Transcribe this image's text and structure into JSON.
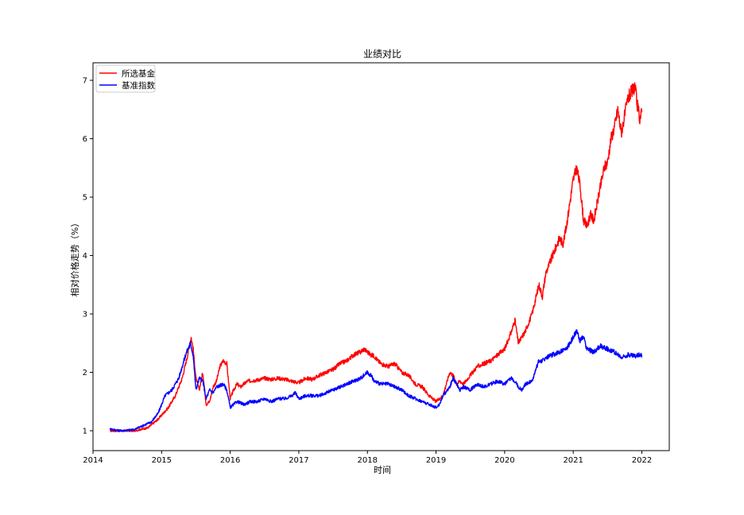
{
  "chart_data": {
    "type": "line",
    "title": "业绩对比",
    "xlabel": "时间",
    "ylabel": "相对价格走势（%）",
    "xlim": [
      2014.0,
      2022.4
    ],
    "ylim": [
      0.66,
      7.3
    ],
    "x_ticks": [
      "2014",
      "2015",
      "2016",
      "2017",
      "2018",
      "2019",
      "2020",
      "2021",
      "2022"
    ],
    "y_ticks": [
      "1",
      "2",
      "3",
      "4",
      "5",
      "6",
      "7"
    ],
    "legend": "top-left",
    "grid": false,
    "series": [
      {
        "name": "所选基金",
        "color": "#ff0000",
        "x": [
          2014.25,
          2014.4,
          2014.6,
          2014.8,
          2014.95,
          2015.1,
          2015.2,
          2015.3,
          2015.38,
          2015.43,
          2015.46,
          2015.5,
          2015.55,
          2015.6,
          2015.65,
          2015.7,
          2015.75,
          2015.8,
          2015.85,
          2015.9,
          2015.95,
          2016.0,
          2016.05,
          2016.1,
          2016.15,
          2016.25,
          2016.4,
          2016.5,
          2016.6,
          2016.7,
          2016.8,
          2016.9,
          2017.0,
          2017.1,
          2017.2,
          2017.3,
          2017.4,
          2017.5,
          2017.6,
          2017.7,
          2017.8,
          2017.9,
          2017.95,
          2018.0,
          2018.05,
          2018.1,
          2018.15,
          2018.2,
          2018.3,
          2018.4,
          2018.5,
          2018.6,
          2018.7,
          2018.8,
          2018.9,
          2019.0,
          2019.05,
          2019.1,
          2019.15,
          2019.2,
          2019.25,
          2019.3,
          2019.35,
          2019.4,
          2019.5,
          2019.6,
          2019.7,
          2019.8,
          2019.9,
          2020.0,
          2020.1,
          2020.15,
          2020.2,
          2020.25,
          2020.3,
          2020.4,
          2020.5,
          2020.55,
          2020.6,
          2020.7,
          2020.8,
          2020.85,
          2020.9,
          2020.95,
          2021.0,
          2021.05,
          2021.1,
          2021.15,
          2021.2,
          2021.25,
          2021.3,
          2021.35,
          2021.4,
          2021.45,
          2021.5,
          2021.55,
          2021.6,
          2021.65,
          2021.7,
          2021.75,
          2021.8,
          2021.85,
          2021.9,
          2021.93,
          2021.97,
          2022.0
        ],
        "y": [
          1.0,
          1.0,
          1.0,
          1.05,
          1.2,
          1.4,
          1.6,
          1.9,
          2.3,
          2.6,
          2.4,
          1.9,
          1.7,
          2.0,
          1.45,
          1.5,
          1.75,
          1.85,
          2.1,
          2.2,
          2.15,
          1.55,
          1.7,
          1.8,
          1.75,
          1.85,
          1.87,
          1.9,
          1.88,
          1.9,
          1.88,
          1.85,
          1.82,
          1.9,
          1.88,
          1.95,
          2.0,
          2.05,
          2.15,
          2.2,
          2.3,
          2.35,
          2.4,
          2.35,
          2.3,
          2.28,
          2.2,
          2.15,
          2.1,
          2.15,
          2.0,
          1.95,
          1.8,
          1.75,
          1.6,
          1.5,
          1.55,
          1.6,
          1.8,
          2.0,
          1.95,
          1.8,
          1.85,
          1.8,
          1.95,
          2.1,
          2.15,
          2.2,
          2.3,
          2.4,
          2.7,
          2.9,
          2.5,
          2.6,
          2.7,
          3.0,
          3.5,
          3.3,
          3.7,
          4.0,
          4.3,
          4.2,
          4.5,
          4.9,
          5.3,
          5.5,
          5.2,
          4.6,
          4.5,
          4.7,
          4.6,
          4.9,
          5.2,
          5.5,
          5.6,
          6.0,
          6.2,
          6.5,
          6.1,
          6.4,
          6.7,
          6.8,
          6.9,
          6.6,
          6.35,
          6.45
        ]
      },
      {
        "name": "基准指数",
        "color": "#0000ff",
        "x": [
          2014.25,
          2014.4,
          2014.6,
          2014.75,
          2014.85,
          2014.95,
          2015.05,
          2015.15,
          2015.25,
          2015.35,
          2015.42,
          2015.46,
          2015.5,
          2015.55,
          2015.6,
          2015.65,
          2015.7,
          2015.75,
          2015.8,
          2015.9,
          2015.95,
          2016.0,
          2016.05,
          2016.1,
          2016.2,
          2016.3,
          2016.4,
          2016.5,
          2016.6,
          2016.7,
          2016.8,
          2016.9,
          2016.95,
          2017.0,
          2017.1,
          2017.2,
          2017.3,
          2017.4,
          2017.5,
          2017.6,
          2017.7,
          2017.8,
          2017.9,
          2018.0,
          2018.05,
          2018.1,
          2018.2,
          2018.3,
          2018.4,
          2018.5,
          2018.6,
          2018.7,
          2018.8,
          2018.9,
          2019.0,
          2019.05,
          2019.1,
          2019.2,
          2019.25,
          2019.3,
          2019.35,
          2019.4,
          2019.5,
          2019.6,
          2019.7,
          2019.8,
          2019.9,
          2020.0,
          2020.1,
          2020.15,
          2020.2,
          2020.25,
          2020.3,
          2020.4,
          2020.5,
          2020.55,
          2020.6,
          2020.7,
          2020.8,
          2020.9,
          2021.0,
          2021.05,
          2021.1,
          2021.15,
          2021.2,
          2021.3,
          2021.4,
          2021.5,
          2021.6,
          2021.7,
          2021.8,
          2021.9,
          2021.95,
          2022.0
        ],
        "y": [
          1.03,
          1.0,
          1.02,
          1.1,
          1.15,
          1.3,
          1.6,
          1.7,
          1.9,
          2.3,
          2.5,
          2.3,
          1.7,
          1.9,
          1.85,
          1.55,
          1.7,
          1.65,
          1.75,
          1.8,
          1.7,
          1.4,
          1.45,
          1.5,
          1.45,
          1.5,
          1.5,
          1.55,
          1.5,
          1.55,
          1.55,
          1.6,
          1.65,
          1.55,
          1.6,
          1.6,
          1.6,
          1.65,
          1.7,
          1.75,
          1.8,
          1.85,
          1.9,
          2.0,
          1.95,
          1.85,
          1.8,
          1.8,
          1.75,
          1.7,
          1.6,
          1.55,
          1.5,
          1.45,
          1.4,
          1.45,
          1.6,
          1.75,
          1.9,
          1.8,
          1.7,
          1.75,
          1.7,
          1.8,
          1.75,
          1.8,
          1.85,
          1.8,
          1.9,
          1.85,
          1.75,
          1.7,
          1.8,
          1.85,
          2.2,
          2.2,
          2.25,
          2.3,
          2.35,
          2.4,
          2.6,
          2.7,
          2.55,
          2.6,
          2.4,
          2.35,
          2.45,
          2.4,
          2.35,
          2.25,
          2.3,
          2.28,
          2.3,
          2.3
        ]
      }
    ]
  }
}
